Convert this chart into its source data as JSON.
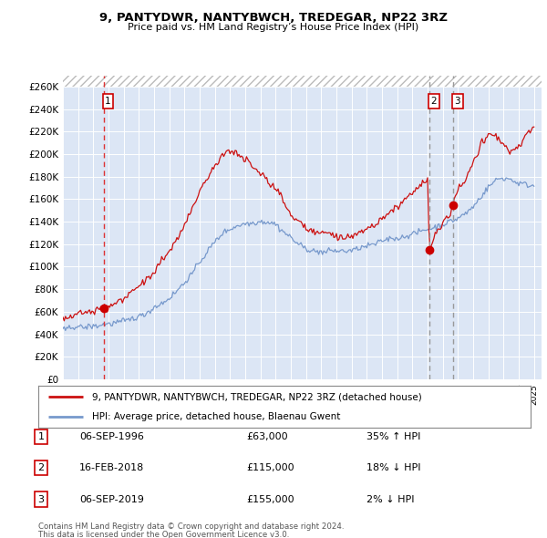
{
  "title": "9, PANTYDWR, NANTYBWCH, TREDEGAR, NP22 3RZ",
  "subtitle": "Price paid vs. HM Land Registry’s House Price Index (HPI)",
  "ylabel_ticks": [
    "£0",
    "£20K",
    "£40K",
    "£60K",
    "£80K",
    "£100K",
    "£120K",
    "£140K",
    "£160K",
    "£180K",
    "£200K",
    "£220K",
    "£240K",
    "£260K"
  ],
  "ytick_values": [
    0,
    20000,
    40000,
    60000,
    80000,
    100000,
    120000,
    140000,
    160000,
    180000,
    200000,
    220000,
    240000,
    260000
  ],
  "ylim_top": 270000,
  "xlim_start": 1994.0,
  "xlim_end": 2025.5,
  "background_color": "#ffffff",
  "plot_bg_color": "#dce6f5",
  "grid_color": "#ffffff",
  "red_line_color": "#cc1111",
  "blue_line_color": "#7799cc",
  "transaction_red_line_color": "#dd3333",
  "transaction_gray_line_color": "#999999",
  "dot_color": "#cc0000",
  "transactions": [
    {
      "date_decimal": 1996.67,
      "price": 63000,
      "label": "1",
      "line_style": "red_dash"
    },
    {
      "date_decimal": 2018.12,
      "price": 115000,
      "label": "2",
      "line_style": "gray_dash"
    },
    {
      "date_decimal": 2019.67,
      "price": 155000,
      "label": "3",
      "line_style": "gray_dash"
    }
  ],
  "transaction_table": [
    {
      "num": "1",
      "date": "06-SEP-1996",
      "price": "£63,000",
      "pct": "35% ↑ HPI"
    },
    {
      "num": "2",
      "date": "16-FEB-2018",
      "price": "£115,000",
      "pct": "18% ↓ HPI"
    },
    {
      "num": "3",
      "date": "06-SEP-2019",
      "price": "£155,000",
      "pct": "2% ↓ HPI"
    }
  ],
  "legend_line1": "9, PANTYDWR, NANTYBWCH, TREDEGAR, NP22 3RZ (detached house)",
  "legend_line2": "HPI: Average price, detached house, Blaenau Gwent",
  "footer1": "Contains HM Land Registry data © Crown copyright and database right 2024.",
  "footer2": "This data is licensed under the Open Government Licence v3.0.",
  "hpi_smooth": {
    "x": [
      1994.0,
      1994.5,
      1995.0,
      1995.5,
      1996.0,
      1996.5,
      1997.0,
      1997.5,
      1998.0,
      1998.5,
      1999.0,
      1999.5,
      2000.0,
      2000.5,
      2001.0,
      2001.5,
      2002.0,
      2002.5,
      2003.0,
      2003.5,
      2004.0,
      2004.5,
      2005.0,
      2005.5,
      2006.0,
      2006.5,
      2007.0,
      2007.5,
      2008.0,
      2008.5,
      2009.0,
      2009.5,
      2010.0,
      2010.5,
      2011.0,
      2011.5,
      2012.0,
      2012.5,
      2013.0,
      2013.5,
      2014.0,
      2014.5,
      2015.0,
      2015.5,
      2016.0,
      2016.5,
      2017.0,
      2017.5,
      2018.0,
      2018.5,
      2019.0,
      2019.5,
      2020.0,
      2020.5,
      2021.0,
      2021.5,
      2022.0,
      2022.5,
      2023.0,
      2023.5,
      2024.0,
      2024.5,
      2025.0
    ],
    "y": [
      42000,
      43000,
      44000,
      45500,
      47000,
      48500,
      50000,
      52000,
      54000,
      56000,
      58000,
      61000,
      65000,
      69000,
      74000,
      80000,
      88000,
      97000,
      107000,
      116000,
      124000,
      131000,
      136000,
      139000,
      141000,
      142000,
      143000,
      142000,
      139000,
      133000,
      126000,
      120000,
      117000,
      115000,
      114000,
      113000,
      112000,
      112000,
      113000,
      115000,
      117000,
      119000,
      121000,
      123000,
      125000,
      127000,
      129000,
      131000,
      133000,
      135000,
      137000,
      139000,
      141000,
      144000,
      150000,
      158000,
      167000,
      174000,
      177000,
      175000,
      172000,
      170000,
      169000
    ]
  },
  "price_smooth": {
    "x": [
      1994.0,
      1994.5,
      1995.0,
      1995.5,
      1996.0,
      1996.5,
      1996.67,
      1997.0,
      1997.5,
      1998.0,
      1998.5,
      1999.0,
      1999.5,
      2000.0,
      2000.5,
      2001.0,
      2001.5,
      2002.0,
      2002.5,
      2003.0,
      2003.5,
      2004.0,
      2004.5,
      2005.0,
      2005.5,
      2006.0,
      2006.5,
      2007.0,
      2007.5,
      2008.0,
      2008.5,
      2009.0,
      2009.5,
      2010.0,
      2010.5,
      2011.0,
      2011.5,
      2012.0,
      2012.5,
      2013.0,
      2013.5,
      2014.0,
      2014.5,
      2015.0,
      2015.5,
      2016.0,
      2016.5,
      2017.0,
      2017.5,
      2018.0,
      2018.12,
      2018.5,
      2019.0,
      2019.5,
      2019.67,
      2020.0,
      2020.5,
      2021.0,
      2021.5,
      2022.0,
      2022.5,
      2023.0,
      2023.5,
      2024.0,
      2024.5,
      2025.0
    ],
    "y": [
      57000,
      59000,
      61000,
      62000,
      63000,
      64000,
      63000,
      65000,
      68000,
      72000,
      76000,
      81000,
      87000,
      94000,
      102000,
      112000,
      122000,
      134000,
      148000,
      163000,
      176000,
      188000,
      196000,
      200000,
      198000,
      193000,
      188000,
      184000,
      178000,
      170000,
      159000,
      148000,
      140000,
      136000,
      133000,
      131000,
      129000,
      128000,
      128000,
      130000,
      133000,
      137000,
      141000,
      146000,
      151000,
      156000,
      162000,
      168000,
      174000,
      178000,
      115000,
      128000,
      138000,
      148000,
      155000,
      168000,
      178000,
      192000,
      207000,
      218000,
      214000,
      206000,
      200000,
      204000,
      213000,
      218000
    ]
  },
  "noise_seed": 42,
  "hpi_noise_scale": 2500,
  "price_noise_scale": 3000
}
